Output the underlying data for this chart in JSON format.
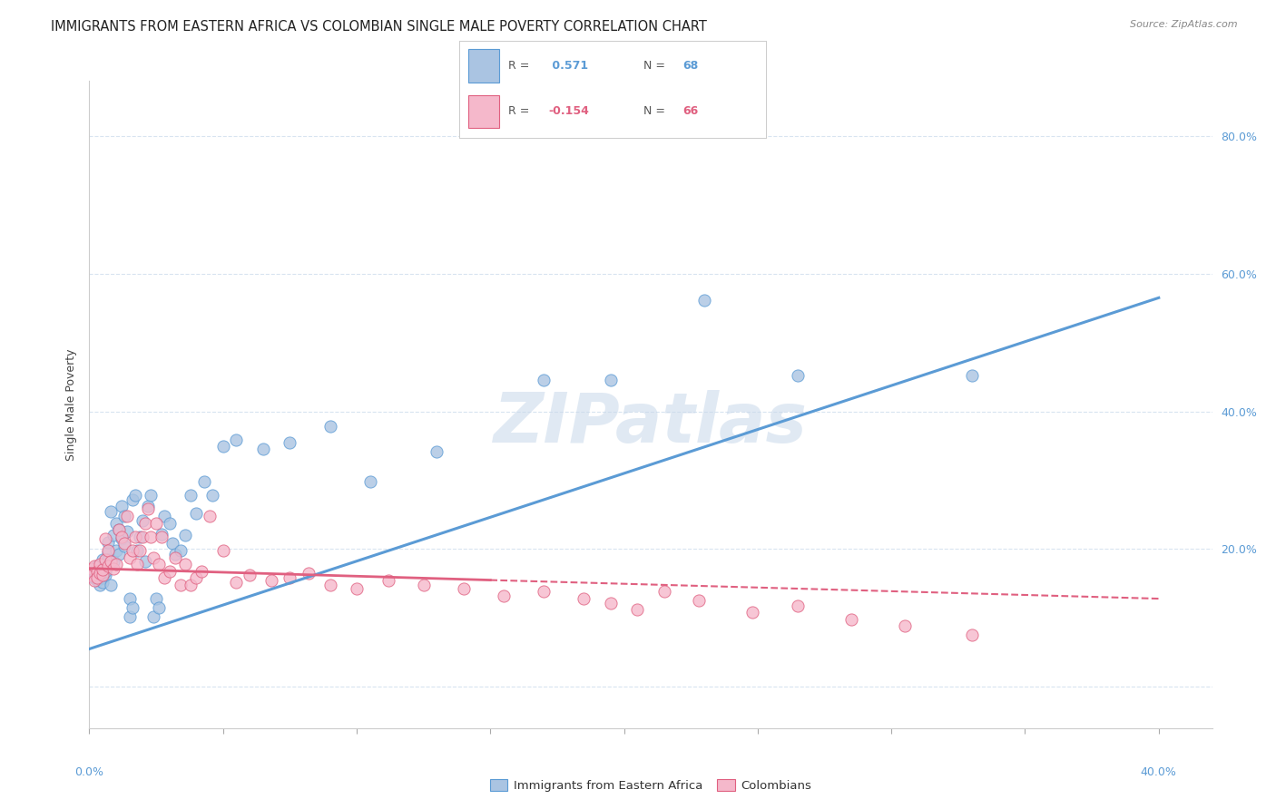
{
  "title": "IMMIGRANTS FROM EASTERN AFRICA VS COLOMBIAN SINGLE MALE POVERTY CORRELATION CHART",
  "source": "Source: ZipAtlas.com",
  "ylabel": "Single Male Poverty",
  "y_ticks": [
    0.0,
    0.2,
    0.4,
    0.6,
    0.8
  ],
  "y_tick_labels": [
    "",
    "20.0%",
    "40.0%",
    "60.0%",
    "80.0%"
  ],
  "x_ticks": [
    0.0,
    0.05,
    0.1,
    0.15,
    0.2,
    0.25,
    0.3,
    0.35,
    0.4
  ],
  "xlim": [
    0.0,
    0.42
  ],
  "ylim": [
    -0.06,
    0.88
  ],
  "blue_R": 0.571,
  "blue_N": 68,
  "pink_R": -0.154,
  "pink_N": 66,
  "blue_color": "#aac4e2",
  "blue_edge_color": "#5b9bd5",
  "blue_line_color": "#5b9bd5",
  "pink_color": "#f5b8cb",
  "pink_edge_color": "#e06080",
  "pink_line_color": "#e06080",
  "right_tick_color": "#5b9bd5",
  "watermark": "ZIPatlas",
  "watermark_color": "#c8d8ea",
  "legend_label_blue": "Immigrants from Eastern Africa",
  "legend_label_pink": "Colombians",
  "blue_line_x0": 0.0,
  "blue_line_y0": 0.055,
  "blue_line_x1": 0.4,
  "blue_line_y1": 0.565,
  "pink_line_x0": 0.0,
  "pink_line_y0": 0.172,
  "pink_line_x1_solid": 0.15,
  "pink_line_y1_solid": 0.155,
  "pink_line_x1_dash": 0.4,
  "pink_line_y1_dash": 0.128,
  "blue_scatter_x": [
    0.001,
    0.001,
    0.002,
    0.002,
    0.003,
    0.003,
    0.003,
    0.004,
    0.004,
    0.005,
    0.005,
    0.005,
    0.006,
    0.006,
    0.006,
    0.007,
    0.007,
    0.007,
    0.008,
    0.008,
    0.009,
    0.009,
    0.01,
    0.01,
    0.011,
    0.011,
    0.012,
    0.012,
    0.013,
    0.013,
    0.014,
    0.015,
    0.015,
    0.016,
    0.016,
    0.017,
    0.018,
    0.019,
    0.02,
    0.021,
    0.022,
    0.023,
    0.024,
    0.025,
    0.026,
    0.027,
    0.028,
    0.03,
    0.031,
    0.032,
    0.034,
    0.036,
    0.038,
    0.04,
    0.043,
    0.046,
    0.05,
    0.055,
    0.065,
    0.075,
    0.09,
    0.105,
    0.13,
    0.17,
    0.195,
    0.23,
    0.265,
    0.33
  ],
  "blue_scatter_y": [
    0.17,
    0.16,
    0.158,
    0.165,
    0.155,
    0.175,
    0.162,
    0.148,
    0.17,
    0.158,
    0.152,
    0.185,
    0.162,
    0.178,
    0.168,
    0.195,
    0.185,
    0.21,
    0.148,
    0.255,
    0.22,
    0.182,
    0.198,
    0.238,
    0.228,
    0.192,
    0.215,
    0.262,
    0.248,
    0.205,
    0.225,
    0.102,
    0.128,
    0.115,
    0.272,
    0.278,
    0.198,
    0.218,
    0.242,
    0.182,
    0.262,
    0.278,
    0.102,
    0.128,
    0.115,
    0.222,
    0.248,
    0.238,
    0.208,
    0.192,
    0.198,
    0.22,
    0.278,
    0.252,
    0.298,
    0.278,
    0.35,
    0.358,
    0.345,
    0.355,
    0.378,
    0.298,
    0.342,
    0.445,
    0.445,
    0.562,
    0.452,
    0.452
  ],
  "pink_scatter_x": [
    0.001,
    0.001,
    0.002,
    0.002,
    0.003,
    0.003,
    0.004,
    0.004,
    0.005,
    0.005,
    0.006,
    0.006,
    0.007,
    0.007,
    0.008,
    0.009,
    0.01,
    0.011,
    0.012,
    0.013,
    0.014,
    0.015,
    0.016,
    0.017,
    0.018,
    0.019,
    0.02,
    0.021,
    0.022,
    0.023,
    0.024,
    0.025,
    0.026,
    0.027,
    0.028,
    0.03,
    0.032,
    0.034,
    0.036,
    0.038,
    0.04,
    0.042,
    0.045,
    0.05,
    0.055,
    0.06,
    0.068,
    0.075,
    0.082,
    0.09,
    0.1,
    0.112,
    0.125,
    0.14,
    0.155,
    0.17,
    0.185,
    0.195,
    0.205,
    0.215,
    0.228,
    0.248,
    0.265,
    0.285,
    0.305,
    0.33
  ],
  "pink_scatter_y": [
    0.172,
    0.162,
    0.175,
    0.155,
    0.168,
    0.158,
    0.178,
    0.165,
    0.162,
    0.17,
    0.215,
    0.185,
    0.198,
    0.175,
    0.182,
    0.172,
    0.178,
    0.228,
    0.218,
    0.208,
    0.248,
    0.188,
    0.198,
    0.218,
    0.178,
    0.198,
    0.218,
    0.238,
    0.258,
    0.218,
    0.188,
    0.238,
    0.178,
    0.218,
    0.158,
    0.168,
    0.188,
    0.148,
    0.178,
    0.148,
    0.158,
    0.168,
    0.248,
    0.198,
    0.152,
    0.162,
    0.155,
    0.158,
    0.165,
    0.148,
    0.142,
    0.155,
    0.148,
    0.142,
    0.132,
    0.138,
    0.128,
    0.122,
    0.112,
    0.138,
    0.125,
    0.108,
    0.118,
    0.098,
    0.088,
    0.075
  ],
  "grid_color": "#d8e4f0",
  "bg_color": "#ffffff",
  "title_fontsize": 10.5,
  "source_fontsize": 8,
  "tick_fontsize": 9,
  "ylabel_fontsize": 9
}
